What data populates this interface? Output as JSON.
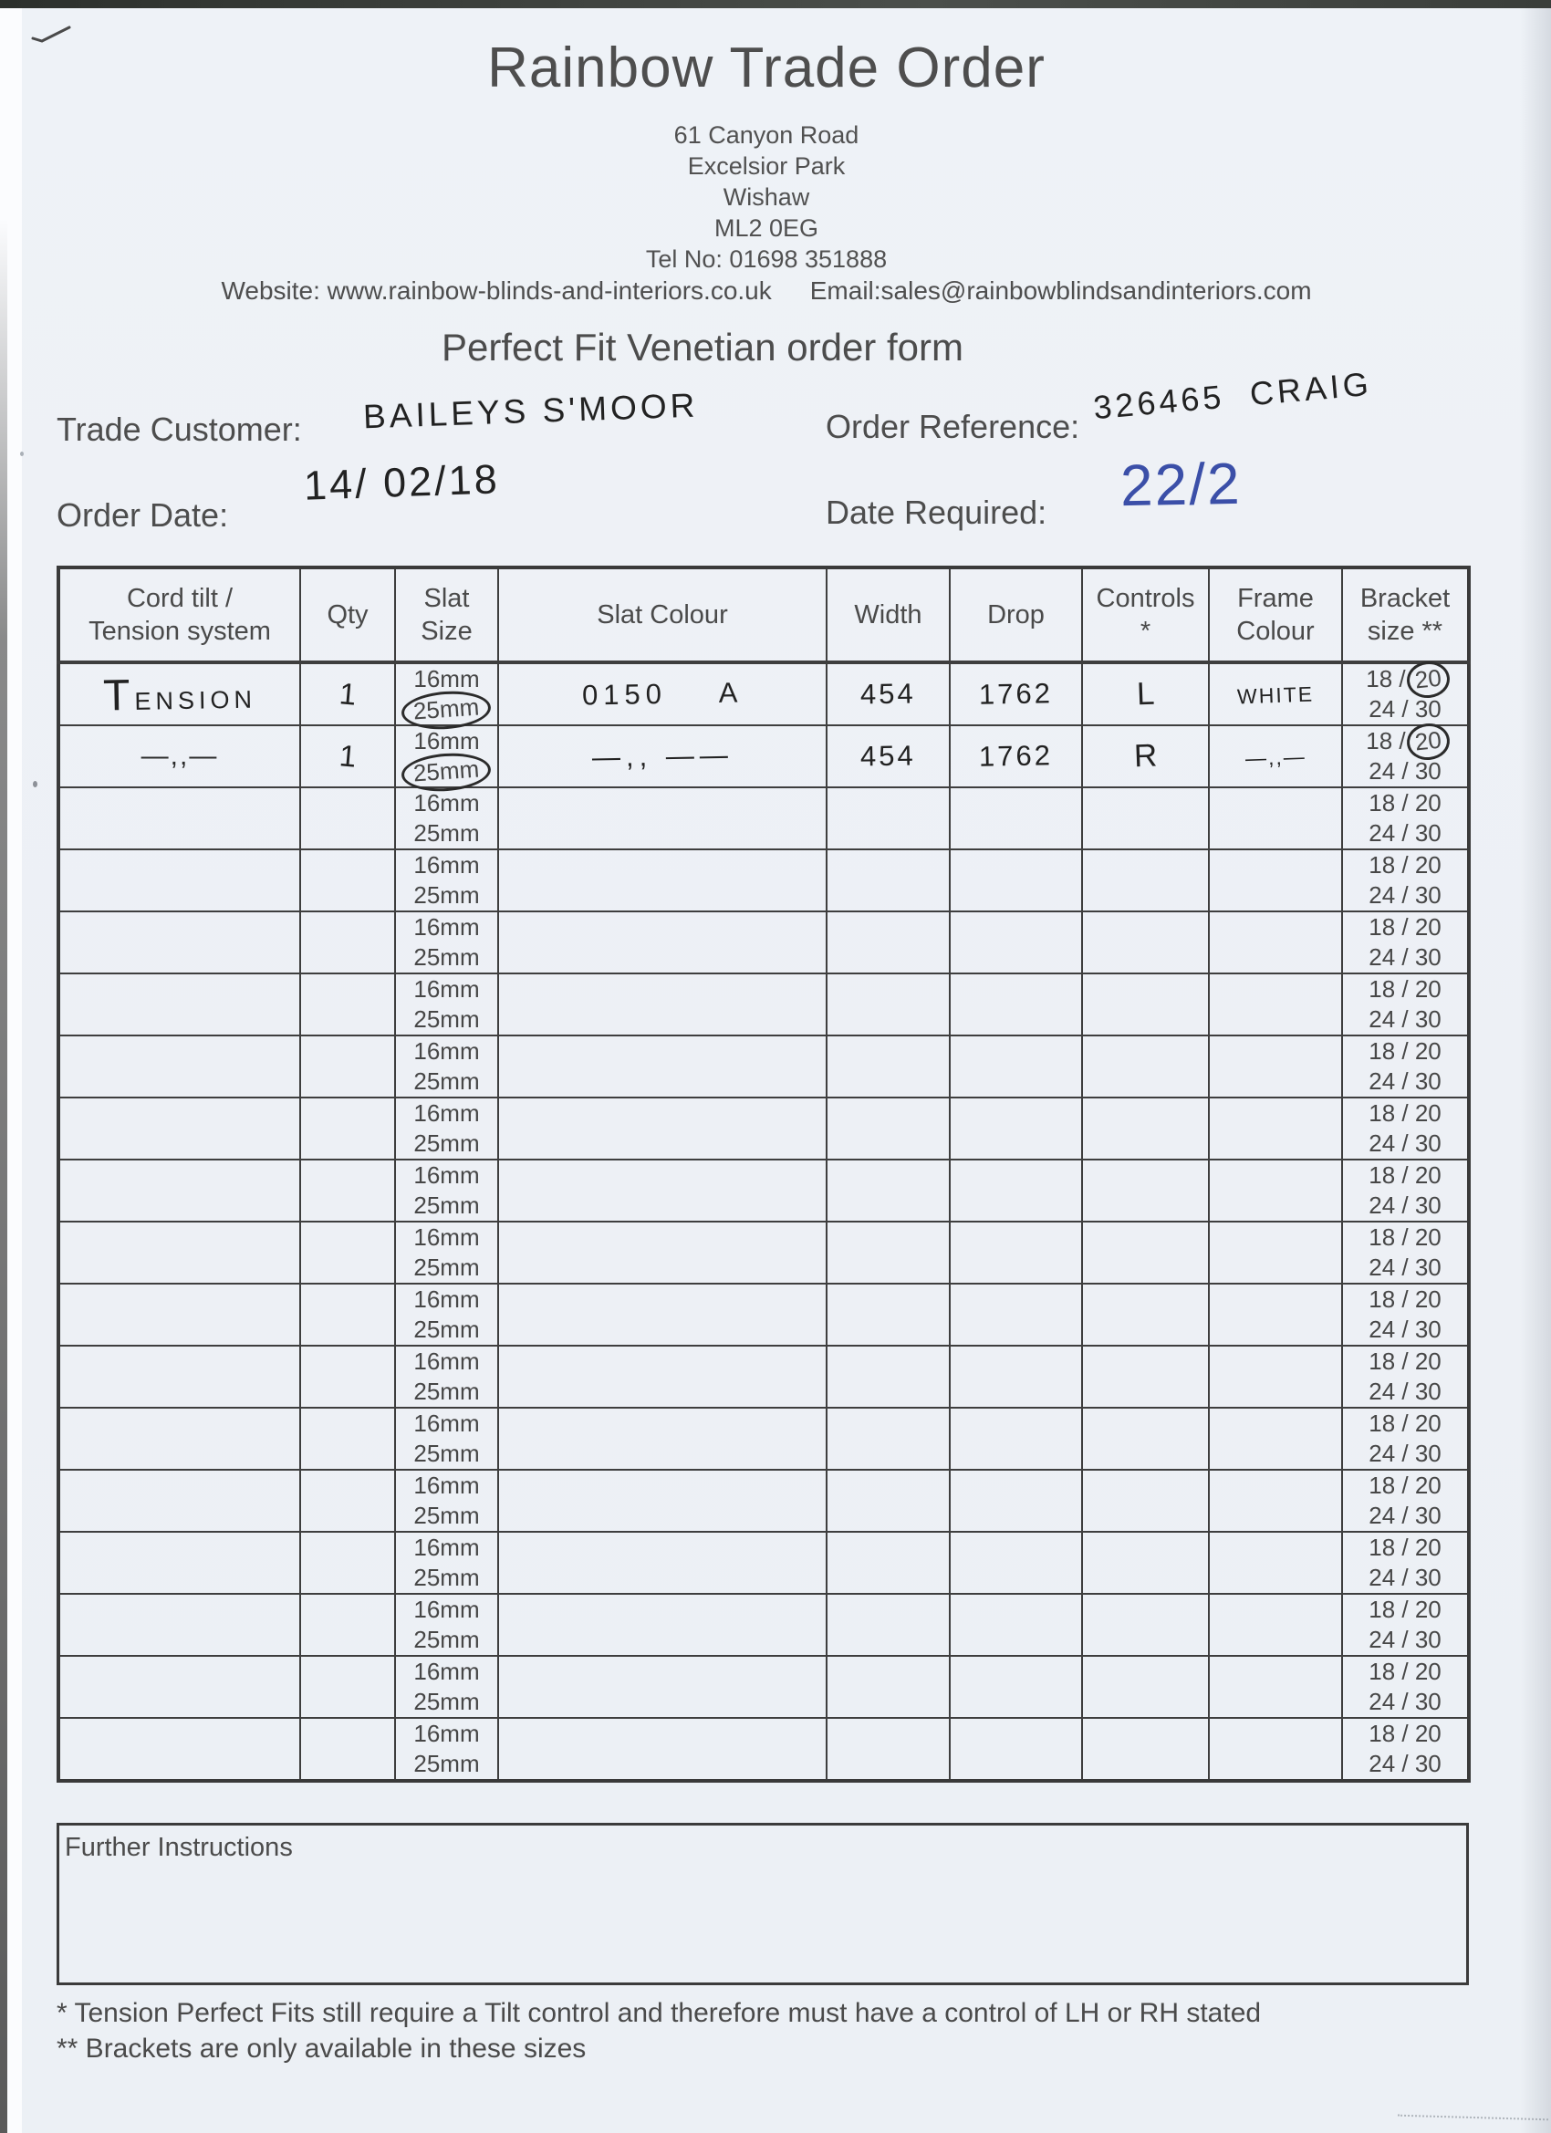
{
  "header": {
    "title": "Rainbow Trade Order",
    "address_lines": [
      "61 Canyon Road",
      "Excelsior Park",
      "Wishaw",
      "ML2 0EG"
    ],
    "tel": "Tel No: 01698 351888",
    "website": "Website: www.rainbow-blinds-and-interiors.co.uk",
    "email": "Email:sales@rainbowblindsandinteriors.com",
    "form_title": "Perfect Fit Venetian order form"
  },
  "fields": {
    "trade_customer_label": "Trade Customer:",
    "trade_customer_value": "BAILEYS S'MOOR",
    "order_reference_label": "Order Reference:",
    "order_reference_value": "326465  CRAIG",
    "order_date_label": "Order Date:",
    "order_date_value": "14/ 02/18",
    "date_required_label": "Date Required:",
    "date_required_value": "22/2"
  },
  "ink": {
    "pen_black": "#222222",
    "pen_blue": "#3b4fa8"
  },
  "table": {
    "headers": [
      "Cord tilt /\nTension system",
      "Qty",
      "Slat\nSize",
      "Slat Colour",
      "Width",
      "Drop",
      "Controls\n*",
      "Frame\nColour",
      "Bracket\nsize **"
    ],
    "slat_lines": [
      "16mm",
      "25mm"
    ],
    "bracket_line1": "18 / 20",
    "bracket_line1_prefix": "18 / ",
    "bracket_line1_circled_part": "20",
    "bracket_line2": "24 / 30",
    "rows": [
      {
        "cord": "TENSION",
        "cord_big_initial": true,
        "qty": "1",
        "slat_circled": true,
        "colour": "0150    A",
        "width": "454",
        "drop": "1762",
        "control": "L",
        "frame": "WHITE",
        "bracket_circled": true
      },
      {
        "cord": "—,,—",
        "qty": "1",
        "slat_circled": true,
        "colour": "—,, ——",
        "width": "454",
        "drop": "1762",
        "control": "R",
        "frame": "—,,—",
        "bracket_circled": true
      },
      {},
      {},
      {},
      {},
      {},
      {},
      {},
      {},
      {},
      {},
      {},
      {},
      {},
      {},
      {},
      {}
    ]
  },
  "footer": {
    "further_instructions_label": "Further Instructions",
    "footnotes": [
      "* Tension Perfect Fits still require a Tilt control and therefore must have a control of LH or RH stated",
      "** Brackets are only available in these sizes"
    ]
  }
}
